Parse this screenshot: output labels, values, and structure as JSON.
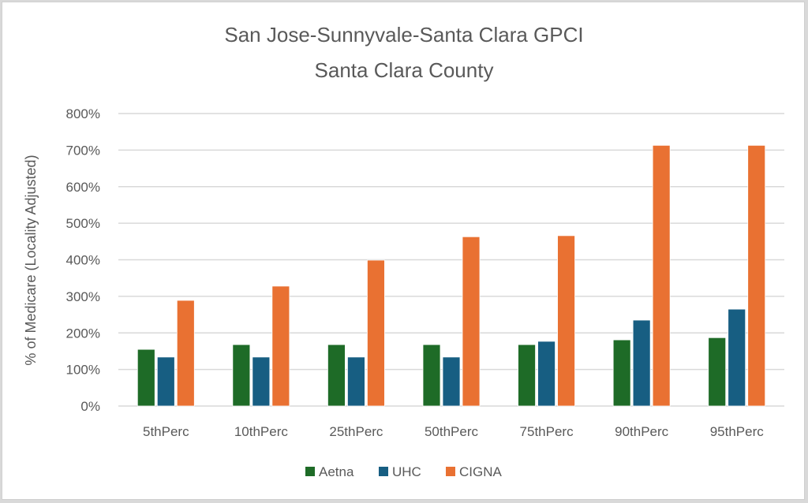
{
  "chart_data": {
    "type": "bar",
    "title": [
      "San Jose-Sunnyvale-Santa Clara  GPCI",
      "Santa Clara County"
    ],
    "xlabel": "",
    "ylabel": "% of Medicare (Locality Adjusted)",
    "ylim": [
      0,
      800
    ],
    "yticks": [
      0,
      100,
      200,
      300,
      400,
      500,
      600,
      700,
      800
    ],
    "ytick_labels": [
      "0%",
      "100%",
      "200%",
      "300%",
      "400%",
      "500%",
      "600%",
      "700%",
      "800%"
    ],
    "grid": true,
    "legend_position": "bottom",
    "categories": [
      "5thPerc",
      "10thPerc",
      "25thPerc",
      "50thPerc",
      "75thPerc",
      "90thPerc",
      "95thPerc"
    ],
    "series": [
      {
        "name": "Aetna",
        "color": "#1e6b27",
        "values": [
          155,
          168,
          168,
          168,
          168,
          181,
          187
        ]
      },
      {
        "name": "UHC",
        "color": "#175e82",
        "values": [
          134,
          134,
          134,
          134,
          177,
          235,
          265
        ]
      },
      {
        "name": "CIGNA",
        "color": "#e97132",
        "values": [
          289,
          328,
          399,
          463,
          466,
          713,
          713
        ]
      }
    ]
  }
}
